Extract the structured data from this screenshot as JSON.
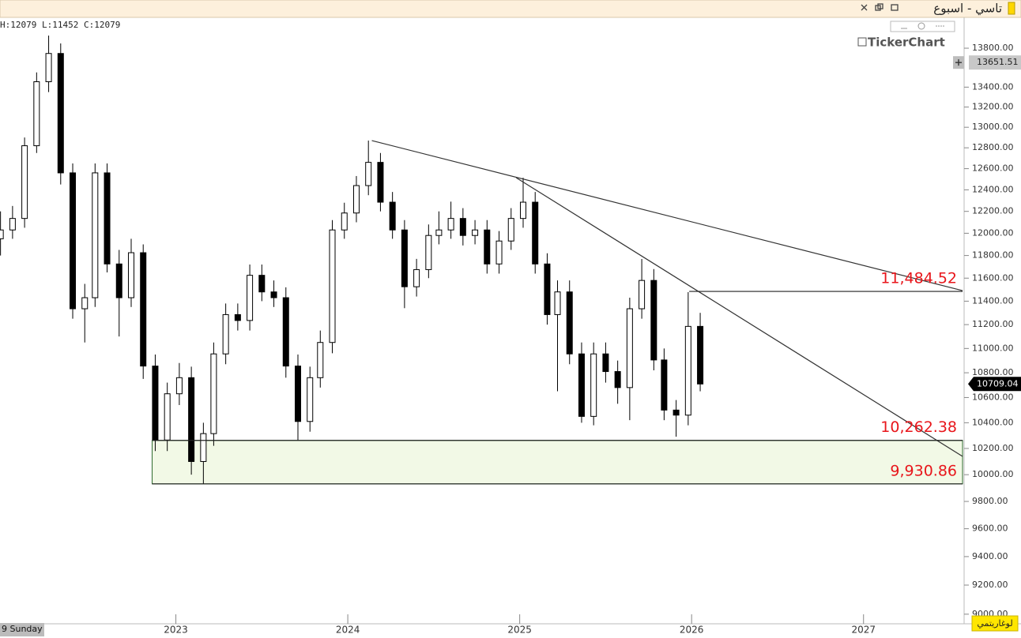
{
  "chart_data": {
    "type": "candlestick",
    "title": "تاسي - اسبوع",
    "header_text": "H:12079 L:11452 C:12079",
    "watermark": "TickerChart",
    "date_label": "9 Sunday",
    "scale_button": "لوغاريتمي",
    "log_scale": true,
    "up_color": "#ffffff",
    "down_color": "#000000",
    "x": [
      2021.98,
      2022.05,
      2022.12,
      2022.19,
      2022.26,
      2022.33,
      2022.4,
      2022.47,
      2022.53,
      2022.6,
      2022.67,
      2022.74,
      2022.81,
      2022.88,
      2022.95,
      2023.02,
      2023.09,
      2023.16,
      2023.22,
      2023.29,
      2023.36,
      2023.43,
      2023.5,
      2023.57,
      2023.64,
      2023.71,
      2023.78,
      2023.84,
      2023.91,
      2023.98,
      2024.05,
      2024.12,
      2024.19,
      2024.26,
      2024.33,
      2024.4,
      2024.47,
      2024.53,
      2024.6,
      2024.67,
      2024.74,
      2024.81,
      2024.88,
      2024.95,
      2025.02,
      2025.09,
      2025.16,
      2025.22,
      2025.29,
      2025.36,
      2025.43,
      2025.5,
      2025.57,
      2025.64,
      2025.71,
      2025.78,
      2025.84,
      2025.91,
      2025.98,
      2026.05
    ],
    "open": [
      11950,
      12030,
      12135,
      12820,
      13455,
      13745,
      12560,
      11335,
      11430,
      12560,
      11725,
      11430,
      11825,
      10855,
      10265,
      10630,
      10760,
      10100,
      10315,
      10955,
      11285,
      11235,
      11625,
      11480,
      11430,
      10855,
      10410,
      10760,
      11050,
      12030,
      12185,
      12440,
      12660,
      12285,
      12030,
      11525,
      11675,
      11980,
      12030,
      12135,
      11980,
      12030,
      11725,
      11930,
      12135,
      12285,
      11725,
      11285,
      11480,
      10955,
      10450,
      10955,
      10810,
      10680,
      11335,
      11580,
      10905,
      10500,
      10460,
      11185
    ],
    "high": [
      12200,
      12250,
      12900,
      13550,
      13932,
      13850,
      12650,
      11550,
      12650,
      12650,
      11850,
      11950,
      11900,
      10950,
      10720,
      10880,
      10850,
      10400,
      11050,
      11380,
      11380,
      11720,
      11720,
      11580,
      11520,
      10950,
      10850,
      11150,
      12120,
      12280,
      12530,
      12870,
      12750,
      12380,
      12120,
      11770,
      12080,
      12200,
      12290,
      12230,
      12120,
      12120,
      12020,
      12230,
      12514,
      12380,
      11820,
      11580,
      11580,
      11050,
      11050,
      11050,
      10900,
      11430,
      11769,
      11680,
      11000,
      10580,
      11478,
      11300
    ],
    "low": [
      11800,
      11950,
      12050,
      12750,
      13350,
      12450,
      11250,
      11050,
      11350,
      11650,
      11100,
      11350,
      10750,
      10180,
      10180,
      10540,
      10000,
      9930,
      10220,
      10870,
      11150,
      11150,
      11400,
      11350,
      10760,
      10262,
      10330,
      10680,
      10960,
      11950,
      12100,
      12350,
      12200,
      11950,
      11340,
      11440,
      11600,
      11900,
      11950,
      11890,
      11900,
      11640,
      11640,
      11850,
      12050,
      11640,
      11200,
      10650,
      10870,
      10400,
      10380,
      10720,
      10550,
      10420,
      11250,
      10820,
      10420,
      10291,
      10380,
      10650
    ],
    "close": [
      12030,
      12135,
      12820,
      13455,
      13745,
      12560,
      11335,
      11430,
      12560,
      11725,
      11430,
      11825,
      10855,
      10265,
      10630,
      10760,
      10100,
      10315,
      10955,
      11285,
      11235,
      11625,
      11480,
      11430,
      10855,
      10410,
      10760,
      11050,
      12030,
      12185,
      12440,
      12660,
      12285,
      12030,
      11525,
      11675,
      11980,
      12030,
      12135,
      11980,
      12030,
      11725,
      11930,
      12135,
      12285,
      11725,
      11285,
      11480,
      10955,
      10450,
      10955,
      10810,
      10680,
      11335,
      11580,
      10905,
      10500,
      10460,
      11185,
      10709
    ],
    "xlim": [
      2021.977,
      2027.585
    ],
    "xticks": [
      2023,
      2024,
      2025,
      2026,
      2027
    ],
    "ylim": [
      8935,
      14125
    ],
    "yticks": [
      {
        "value": 13800,
        "label": "13800.00"
      },
      {
        "value": 13400,
        "label": "13400.00"
      },
      {
        "value": 13200,
        "label": "13200.00"
      },
      {
        "value": 13000,
        "label": "13000.00"
      },
      {
        "value": 12800,
        "label": "12800.00"
      },
      {
        "value": 12600,
        "label": "12600.00"
      },
      {
        "value": 12400,
        "label": "12400.00"
      },
      {
        "value": 12200,
        "label": "12200.00"
      },
      {
        "value": 12000,
        "label": "12000.00"
      },
      {
        "value": 11800,
        "label": "11800.00"
      },
      {
        "value": 11600,
        "label": "11600.00"
      },
      {
        "value": 11400,
        "label": "11400.00"
      },
      {
        "value": 11200,
        "label": "11200.00"
      },
      {
        "value": 11000,
        "label": "11000.00"
      },
      {
        "value": 10800,
        "label": "10800.00"
      },
      {
        "value": 10600,
        "label": "10600.00"
      },
      {
        "value": 10400,
        "label": "10400.00"
      },
      {
        "value": 10200,
        "label": "10200.00"
      },
      {
        "value": 10000,
        "label": "10000.00"
      },
      {
        "value": 9800,
        "label": "9800.00"
      },
      {
        "value": 9600,
        "label": "9600.00"
      },
      {
        "value": 9400,
        "label": "9400.00"
      },
      {
        "value": 9200,
        "label": "9200.00"
      },
      {
        "value": 9000,
        "label": "9000.00"
      }
    ],
    "price_badges": [
      {
        "value": 13651.51,
        "label": "13651.51",
        "color": "#c8c8c8"
      },
      {
        "value": 10709.04,
        "label": "10709.04",
        "color": "#000000"
      }
    ],
    "trendlines": [
      {
        "x": [
          2024.14,
          2027.576
        ],
        "y": [
          12870,
          11491
        ]
      },
      {
        "x": [
          2024.98,
          2027.576
        ],
        "y": [
          12514,
          10139
        ]
      }
    ],
    "levels": [
      {
        "value": 11484.52,
        "label": "11,484.52",
        "start": 2025.986
      },
      {
        "value": 10262.38,
        "label": "10,262.38",
        "start": 2022.862
      },
      {
        "value": 9930.86,
        "label": "9,930.86",
        "start": 2022.862
      }
    ],
    "level_end": 2027.576,
    "zone_color": "#f2f9e6"
  }
}
